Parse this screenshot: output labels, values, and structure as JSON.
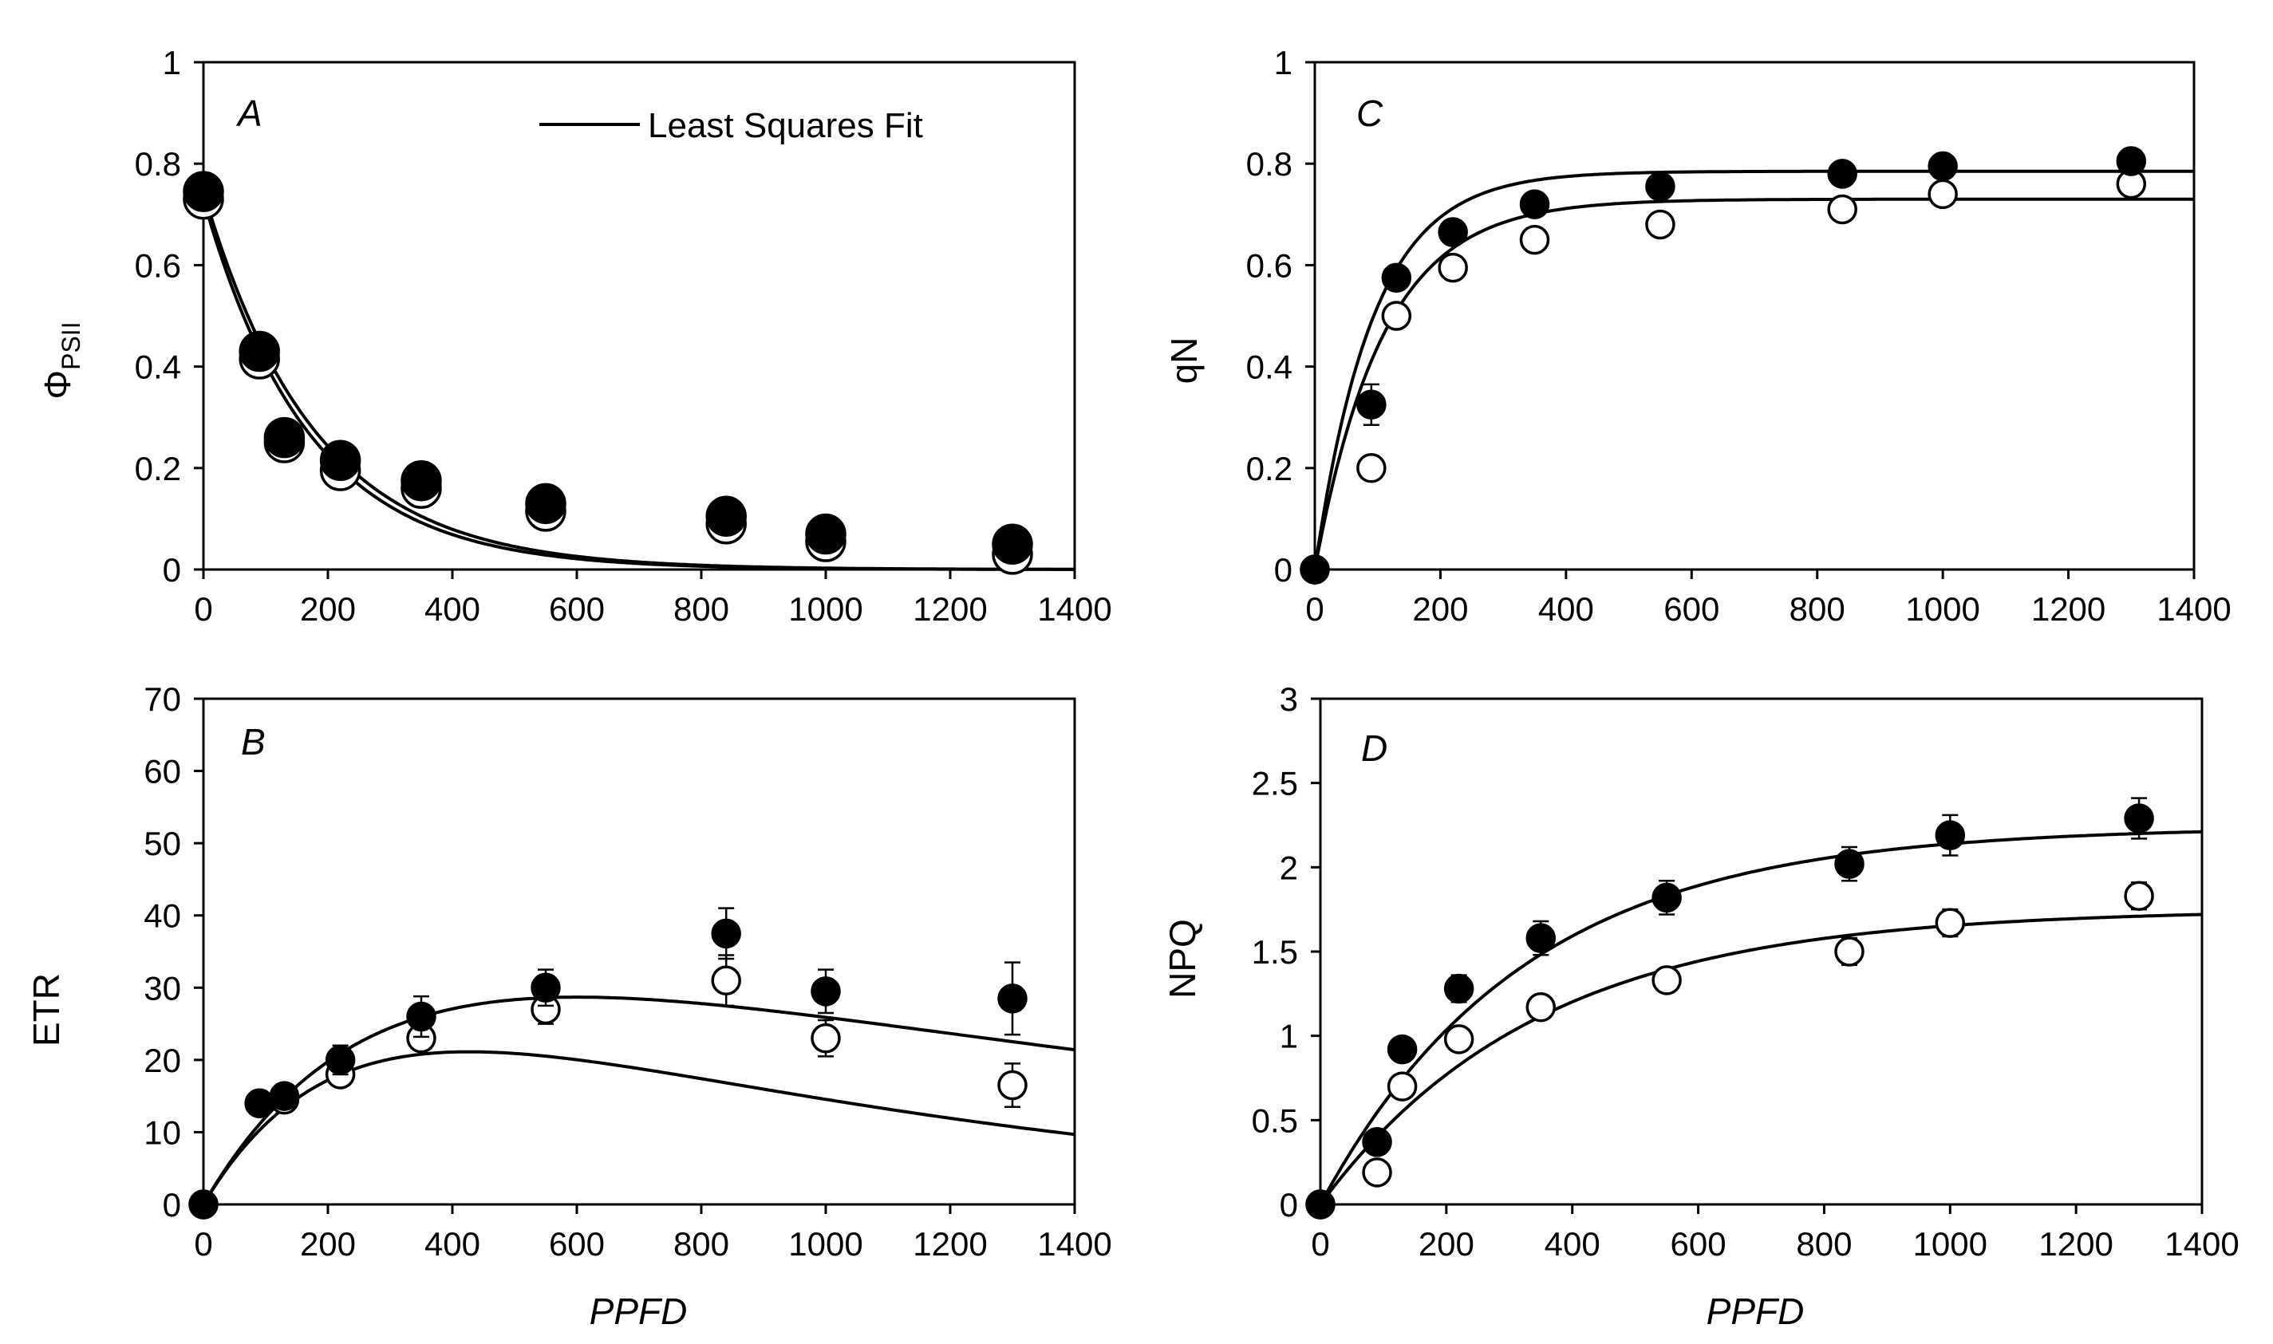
{
  "figure": {
    "legend": {
      "label": "Least Squares Fit"
    },
    "x_title": "PPFD"
  },
  "chart_data": [
    {
      "id": "A",
      "type": "scatter",
      "panel_label": "A",
      "xlabel": "",
      "ylabel": "Φ",
      "ylabel_sub": "PSII",
      "xlim": [
        0,
        1400
      ],
      "ylim": [
        0,
        1
      ],
      "xticks": [
        0,
        200,
        400,
        600,
        800,
        1000,
        1200,
        1400
      ],
      "yticks": [
        0,
        0.2,
        0.4,
        0.6,
        0.8,
        1
      ],
      "ytick_labels": [
        "0",
        "0.2",
        "0.4",
        "0.6",
        "0.8",
        "1"
      ],
      "legend": "Least Squares Fit",
      "series": [
        {
          "name": "filled",
          "marker": "filled",
          "x": [
            0,
            90,
            130,
            220,
            350,
            550,
            840,
            1000,
            1300
          ],
          "y": [
            0.745,
            0.43,
            0.26,
            0.215,
            0.175,
            0.13,
            0.105,
            0.07,
            0.05
          ],
          "err": [
            0,
            0,
            0,
            0.02,
            0,
            0,
            0,
            0,
            0
          ]
        },
        {
          "name": "open",
          "marker": "open",
          "x": [
            0,
            90,
            130,
            220,
            350,
            550,
            840,
            1000,
            1300
          ],
          "y": [
            0.73,
            0.415,
            0.25,
            0.195,
            0.16,
            0.115,
            0.09,
            0.055,
            0.03
          ],
          "err": [
            0,
            0,
            0,
            0,
            0,
            0,
            0,
            0,
            0
          ]
        }
      ],
      "fits": [
        {
          "model": "exp_decay",
          "y0": 0.745,
          "k": 0.0056
        },
        {
          "model": "exp_decay",
          "y0": 0.73,
          "k": 0.0059
        }
      ]
    },
    {
      "id": "B",
      "type": "scatter",
      "panel_label": "B",
      "xlabel": "PPFD",
      "ylabel": "ETR",
      "xlim": [
        0,
        1400
      ],
      "ylim": [
        0,
        70
      ],
      "xticks": [
        0,
        200,
        400,
        600,
        800,
        1000,
        1200,
        1400
      ],
      "yticks": [
        0,
        10,
        20,
        30,
        40,
        50,
        60,
        70
      ],
      "ytick_labels": [
        "0",
        "10",
        "20",
        "30",
        "40",
        "50",
        "60",
        "70"
      ],
      "series": [
        {
          "name": "filled",
          "marker": "filled",
          "x": [
            0,
            90,
            130,
            220,
            350,
            550,
            840,
            1000,
            1300
          ],
          "y": [
            0,
            14,
            15,
            20,
            26,
            30,
            37.5,
            29.5,
            28.5
          ],
          "err": [
            0,
            1.5,
            1.5,
            2,
            2.8,
            2.5,
            3.5,
            3,
            5
          ]
        },
        {
          "name": "open",
          "marker": "open",
          "x": [
            0,
            90,
            130,
            220,
            350,
            550,
            840,
            1000,
            1300
          ],
          "y": [
            0,
            14,
            14.5,
            18,
            23,
            27,
            31,
            23,
            16.5
          ],
          "err": [
            0,
            1,
            1,
            1.5,
            1.5,
            2,
            3.5,
            2.5,
            3
          ]
        }
      ],
      "fits": [
        {
          "model": "platt",
          "Ps": 47,
          "a": 0.149,
          "b": 0.026
        },
        {
          "model": "platt",
          "Ps": 45,
          "a": 0.145,
          "b": 0.049
        }
      ]
    },
    {
      "id": "C",
      "type": "scatter",
      "panel_label": "C",
      "xlabel": "",
      "ylabel": "qN",
      "xlim": [
        0,
        1400
      ],
      "ylim": [
        0,
        1
      ],
      "xticks": [
        0,
        200,
        400,
        600,
        800,
        1000,
        1200,
        1400
      ],
      "yticks": [
        0,
        0.2,
        0.4,
        0.6,
        0.8,
        1
      ],
      "ytick_labels": [
        "0",
        "0.2",
        "0.4",
        "0.6",
        "0.8",
        "1"
      ],
      "series": [
        {
          "name": "filled",
          "marker": "filled",
          "x": [
            0,
            90,
            130,
            220,
            350,
            550,
            840,
            1000,
            1300
          ],
          "y": [
            0,
            0.325,
            0.575,
            0.665,
            0.72,
            0.755,
            0.78,
            0.795,
            0.805
          ],
          "err": [
            0,
            0.04,
            0,
            0,
            0.02,
            0.02,
            0,
            0,
            0
          ]
        },
        {
          "name": "open",
          "marker": "open",
          "x": [
            0,
            90,
            130,
            220,
            350,
            550,
            840,
            1000,
            1300
          ],
          "y": [
            0,
            0.2,
            0.5,
            0.595,
            0.65,
            0.68,
            0.71,
            0.74,
            0.76
          ],
          "err": [
            0,
            0,
            0,
            0,
            0,
            0.02,
            0,
            0,
            0
          ]
        }
      ],
      "fits": [
        {
          "model": "exp_rise",
          "ymax": 0.785,
          "k": 0.0108
        },
        {
          "model": "exp_rise",
          "ymax": 0.73,
          "k": 0.0092
        }
      ]
    },
    {
      "id": "D",
      "type": "scatter",
      "panel_label": "D",
      "xlabel": "PPFD",
      "ylabel": "NPQ",
      "xlim": [
        0,
        1400
      ],
      "ylim": [
        0,
        3
      ],
      "xticks": [
        0,
        200,
        400,
        600,
        800,
        1000,
        1200,
        1400
      ],
      "yticks": [
        0,
        0.5,
        1,
        1.5,
        2,
        2.5,
        3
      ],
      "ytick_labels": [
        "0",
        "0.5",
        "1",
        "1.5",
        "2",
        "2.5",
        "3"
      ],
      "series": [
        {
          "name": "filled",
          "marker": "filled",
          "x": [
            0,
            90,
            130,
            220,
            350,
            550,
            840,
            1000,
            1300
          ],
          "y": [
            0,
            0.37,
            0.92,
            1.28,
            1.58,
            1.82,
            2.02,
            2.19,
            2.29
          ],
          "err": [
            0,
            0.04,
            0,
            0.08,
            0.1,
            0.1,
            0.1,
            0.12,
            0.12
          ]
        },
        {
          "name": "open",
          "marker": "open",
          "x": [
            0,
            90,
            130,
            220,
            350,
            550,
            840,
            1000,
            1300
          ],
          "y": [
            0,
            0.19,
            0.7,
            0.98,
            1.17,
            1.33,
            1.5,
            1.67,
            1.83
          ],
          "err": [
            0,
            0,
            0,
            0.07,
            0.05,
            0.07,
            0.08,
            0.08,
            0.08
          ]
        }
      ],
      "fits": [
        {
          "model": "exp_rise",
          "ymax": 2.24,
          "k": 0.0031
        },
        {
          "model": "exp_rise",
          "ymax": 1.75,
          "k": 0.0029
        }
      ]
    }
  ]
}
